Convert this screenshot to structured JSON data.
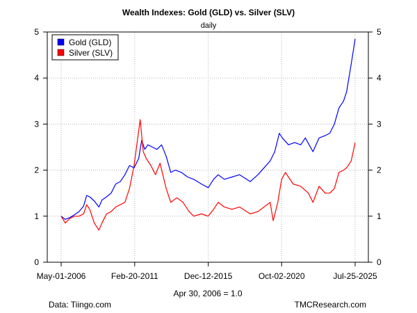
{
  "chart_data": {
    "type": "line",
    "title": "Wealth Indexes: Gold (GLD) vs. Silver (SLV)",
    "subtitle": "daily",
    "xlabel": "Apr 30, 2006 = 1.0",
    "ylabel": "",
    "source_left": "Data: Tiingo.com",
    "source_right": "TMCResearch.com",
    "x_tick_labels": [
      "May-01-2006",
      "Feb-20-2011",
      "Dec-12-2015",
      "Oct-02-2020",
      "Jul-25-2025"
    ],
    "x_tick_years": [
      2006.33,
      2011.14,
      2015.95,
      2020.75,
      2025.56
    ],
    "xlim": [
      2006.33,
      2025.56
    ],
    "ylim": [
      0,
      5
    ],
    "y_ticks": [
      0,
      1,
      2,
      3,
      4,
      5
    ],
    "y_tick_labels": [
      "0",
      "1",
      "2",
      "3",
      "4",
      "5"
    ],
    "grid": true,
    "legend_position": "top-left",
    "series": [
      {
        "name": "Gold (GLD)",
        "color": "#0000ff",
        "x": [
          2006.33,
          2006.6,
          2006.9,
          2007.2,
          2007.5,
          2007.8,
          2008.0,
          2008.2,
          2008.5,
          2008.8,
          2009.0,
          2009.3,
          2009.6,
          2009.9,
          2010.2,
          2010.5,
          2010.8,
          2011.1,
          2011.4,
          2011.6,
          2011.8,
          2012.0,
          2012.3,
          2012.6,
          2012.9,
          2013.2,
          2013.5,
          2013.8,
          2014.2,
          2014.6,
          2015.0,
          2015.5,
          2015.95,
          2016.3,
          2016.6,
          2017.0,
          2017.5,
          2018.0,
          2018.7,
          2019.2,
          2019.6,
          2020.0,
          2020.3,
          2020.6,
          2020.8,
          2021.2,
          2021.6,
          2022.0,
          2022.3,
          2022.8,
          2023.2,
          2023.6,
          2023.9,
          2024.2,
          2024.5,
          2024.8,
          2025.0,
          2025.3,
          2025.56
        ],
        "values": [
          1.0,
          0.93,
          0.97,
          1.03,
          1.1,
          1.22,
          1.45,
          1.42,
          1.33,
          1.2,
          1.35,
          1.42,
          1.5,
          1.7,
          1.75,
          1.9,
          2.1,
          2.05,
          2.25,
          2.65,
          2.45,
          2.55,
          2.5,
          2.45,
          2.55,
          2.3,
          1.95,
          2.0,
          1.95,
          1.85,
          1.8,
          1.7,
          1.62,
          1.8,
          1.9,
          1.8,
          1.85,
          1.9,
          1.75,
          1.9,
          2.05,
          2.2,
          2.4,
          2.8,
          2.7,
          2.55,
          2.6,
          2.55,
          2.7,
          2.4,
          2.7,
          2.75,
          2.8,
          3.0,
          3.35,
          3.5,
          3.7,
          4.3,
          4.85
        ]
      },
      {
        "name": "Silver (SLV)",
        "color": "#ff0000",
        "x": [
          2006.33,
          2006.6,
          2006.9,
          2007.2,
          2007.5,
          2007.8,
          2008.0,
          2008.2,
          2008.5,
          2008.8,
          2009.0,
          2009.3,
          2009.6,
          2009.9,
          2010.2,
          2010.5,
          2010.8,
          2011.1,
          2011.3,
          2011.5,
          2011.7,
          2011.9,
          2012.2,
          2012.5,
          2012.8,
          2013.2,
          2013.5,
          2013.9,
          2014.3,
          2014.7,
          2015.0,
          2015.5,
          2015.95,
          2016.3,
          2016.6,
          2017.0,
          2017.5,
          2018.0,
          2018.7,
          2019.2,
          2019.6,
          2020.0,
          2020.2,
          2020.5,
          2020.75,
          2021.0,
          2021.5,
          2022.0,
          2022.5,
          2022.8,
          2023.2,
          2023.6,
          2023.9,
          2024.2,
          2024.5,
          2024.8,
          2025.0,
          2025.3,
          2025.56
        ],
        "values": [
          1.0,
          0.85,
          0.95,
          1.0,
          1.0,
          1.05,
          1.25,
          1.15,
          0.85,
          0.7,
          0.85,
          1.05,
          1.1,
          1.2,
          1.25,
          1.3,
          1.6,
          2.1,
          2.6,
          3.1,
          2.4,
          2.25,
          2.1,
          1.9,
          2.15,
          1.6,
          1.3,
          1.4,
          1.3,
          1.1,
          1.0,
          1.05,
          1.0,
          1.15,
          1.3,
          1.2,
          1.15,
          1.2,
          1.05,
          1.1,
          1.2,
          1.3,
          0.9,
          1.3,
          1.8,
          1.95,
          1.7,
          1.65,
          1.5,
          1.3,
          1.65,
          1.5,
          1.5,
          1.6,
          1.95,
          2.0,
          2.05,
          2.2,
          2.6
        ]
      }
    ]
  }
}
